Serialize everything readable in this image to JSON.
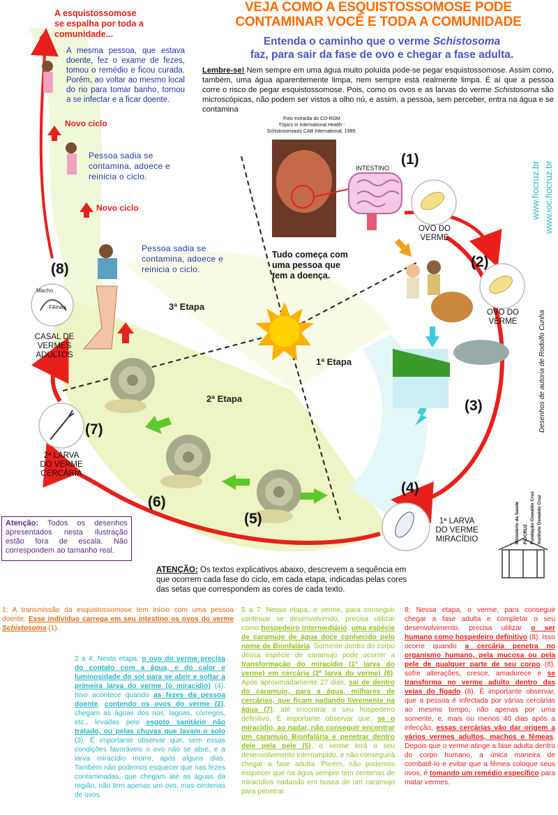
{
  "header": {
    "title_line1": "VEJA COMO A ESQUISTOSSOMOSE PODE",
    "title_line2": "CONTAMINAR VOCÊ E TODA A COMUNIDADE",
    "subtitle_line1_pre": "Entenda o caminho que o verme ",
    "subtitle_line1_italic": "Schistosoma",
    "subtitle_line2": "faz, para sair da fase de ovo e chegar a fase adulta."
  },
  "lembre": {
    "label": "Lembre-se!",
    "text_a": " Nem sempre em uma água muito poluída pode-se pegar esquistossomose. Assim como, também, uma água aparentemente limpa, nem sempre está realmente limpa. É aí que a pessoa corre o risco de pegar esquistossomose. Pois, como os ovos e as larvas do verme ",
    "text_italic": "Schistosoma",
    "text_b": " são microscópicas, não podem ser vistos a olho nú, e assim, a pessoa, sem perceber, entra na água e se contamina"
  },
  "left_top": {
    "heading_l1": "A esquistossomose",
    "heading_l2": "se espalha por toda a",
    "heading_l3": "comunidade...",
    "story": "A mesma pessoa, que estava doente, fez o exame de fezes, tomou o remédio e ficou curada. Porém, ao voltar ao mesmo local do rio para tomar banho, tornou a se infectar e a ficar doente.",
    "novo_ciclo_1": "Novo ciclo",
    "pessoa_sadia_1": "Pessoa sadia se contamina, adoece e reinicia o ciclo.",
    "novo_ciclo_2": "Novo ciclo",
    "pessoa_sadia_2": "Pessoa sadia se contamina, adoece e reinicia o ciclo."
  },
  "photo": {
    "credit_l1": "Foto extraída do CD-ROM",
    "credit_l2": "Tópics in International Health -",
    "credit_l3": "Schistosomiasis CAB International, 1999.",
    "intestino": "INTESTINO"
  },
  "tudo": "Tudo começa com uma pessoa que tem a doença.",
  "cycle": {
    "n1": "(1)",
    "n2": "(2)",
    "n3": "(3)",
    "n4": "(4)",
    "n5": "(5)",
    "n6": "(6)",
    "n7": "(7)",
    "n8": "(8)",
    "ovo1_l1": "OVO DO",
    "ovo1_l2": "VERME",
    "ovo2_l1": "OVO DO",
    "ovo2_l2": "VERME",
    "larva1_l1": "1ª LARVA",
    "larva1_l2": "DO VERME",
    "larva1_l3": "MIRACÍDIO",
    "larva2_l1": "2ª LARVA",
    "larva2_l2": "DO VERME",
    "larva2_l3": "CERCÁRIA",
    "casal_l1": "CASAL DE",
    "casal_l2": "VERMES",
    "casal_l3": "ADULTOS",
    "macho": "Macho",
    "femea": "Fêmea",
    "etapa1": "1ª Etapa",
    "etapa2": "2ª Etapa",
    "etapa3": "3ª Etapa"
  },
  "side": {
    "url1": "www.fiocruz.br",
    "url2": "www.ioc.fiocruz.br",
    "credit": "Desenhos de autoria de  Rodolfo Cunha",
    "inst1": "Ministério da Saúde",
    "inst2": "FIOCRUZ",
    "inst3": "Fundação Oswaldo Cruz",
    "inst4": "Instituto Oswaldo Cruz"
  },
  "atencao_box": {
    "label": "Atenção:",
    "text": " Todos os desenhos apresentados nesta ilustração estão fora de escala. Não correspondem ao tamanho real."
  },
  "atencao2": {
    "label": "ATENÇÃO:",
    "text": " Os textos explicativos abaixo, descrevem a sequência em que ocorrem cada fase do ciclo, em cada etapa, indicadas pelas cores das setas que correspondem as cores de cada texto."
  },
  "col1": {
    "lead": "1:",
    "t1": " A transmissão da esquistossomose tem início com uma pessoa doente. ",
    "u1": "Esse indivíduo carrega em seu intestino os ovos do verme ",
    "u1i": "Schistosoma",
    "t2": " (1)."
  },
  "col2": {
    "lead": "2 a 4:",
    "t1": " Nesta etapa, ",
    "u1": "o ovo do verme precisa do contato com a água, e do calor e luminosidade do sol para se abrir e soltar a primeira larva do verme (o miracídio)",
    "t2": " (4). Isso acontece quando ",
    "u2": "as fezes da pessoa doente",
    "t3": ", ",
    "u3": "contendo os ovos do verme (2)",
    "t4": ", chegam as águas dos rios, lagoas, córregos, etc., levadas pelo ",
    "u4": "esgoto sanitário não tratado, ou pelas chuvas que lavam o solo",
    "t5": " (3). É importante observar que, sem essas condições favoráveis o ovo não se abre, e a larva miracídio morre, após alguns dias. Também não podemos esquecer que nas fezes contaminadas, que chegam até as águas da região, não tem apenas um ovo, mas centenas de ovos."
  },
  "col3": {
    "lead": "5 a 7:",
    "t1": " Nessa etapa, o verme, para conseguir continuar se desenvolvendo, precisa utilizar como ",
    "u1": "hospedeiro intermediário",
    "t2": ", ",
    "u2": "uma espécie de caramujo de água doce conhecido pelo nome de Bionfalária",
    "t3": ". Somente dentro do corpo dessa espécie de caramujo pode ocorrer a ",
    "u3": "transformação do miracídio (1ª larva do verme) em cercária (2ª larva do verme) (6)",
    "t4": ". Após aproximadamente 27 dias, ",
    "u4": "sai de dentro do caramujo, para a água, milhares de cercárias, que ficam nadando livremente na água (7)",
    "t5": ", até encontrar o seu hospedeiro definitivo. É importante observar que, ",
    "u5": "se o miracídio, ao nadar, não conseguir encontrar um caramujo Bionfalária e penetrar dentro dele pela pele (5)",
    "t6": ", o verme terá o seu desenvolvimento interrompido, e não conseguirá chegar a fase adulta. Porém, não podemos esquecer que na água sempre tem centenas de miracídios nadando em busca de um caramujo para penetrar."
  },
  "col4": {
    "lead": "8:",
    "t1": " Nessa etapa, o verme, para conseguir chegar a fase adulta e completar o seu desenvolvimento, precisa utilizar ",
    "u1": "o ser humano como hospedeiro definitivo",
    "t2": " (8). Isso ocorre quando ",
    "u2": "a cercária penetra no organismo humano, pela mucosa ou pela pele de qualquer parte de seu corpo",
    "t3": " (8), sofre alterações, cresce, amadurece e ",
    "u3": "se transforma no verme adulto dentro das veias do fígado",
    "t4": " (8). É importante observar, que a pessoa é infectada por várias cercárias ao mesmo tempo, não apenas por uma somente, e, mais ou menos 40 dias após a infecção, ",
    "u4": "essas cercárias vão dar origem a vários vermes adultos, machos e fêmeas",
    "t5": ". Depois que o verme atinge a fase adulta dentro do corpo humano, a única maneira de combatê-lo e evitar que a fêmea coloque seus ovos, é ",
    "u5": "tomando um remédio específico",
    "t6": " para matar vermes."
  },
  "colors": {
    "orange": "#ff6a00",
    "red": "#e8201c",
    "blue": "#2233aa",
    "cyan": "#23b7c8",
    "green": "#8fc21e",
    "purple": "#5a2a8a"
  }
}
